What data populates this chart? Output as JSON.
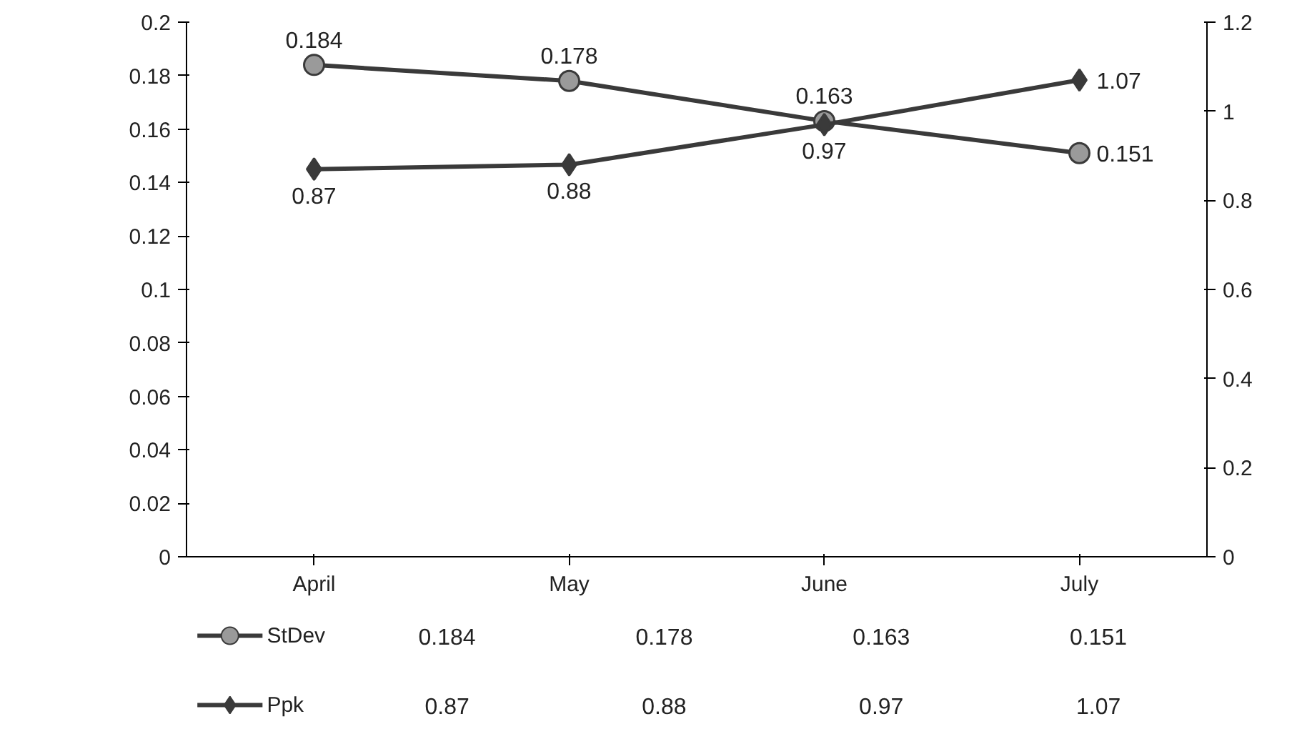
{
  "chart_data": {
    "type": "line",
    "categories": [
      "April",
      "May",
      "June",
      "July"
    ],
    "series": [
      {
        "name": "StDev",
        "color": "#3a3a3a",
        "marker": "circle",
        "values": [
          0.184,
          0.178,
          0.163,
          0.151
        ],
        "value_labels": [
          "0.184",
          "0.178",
          "0.163",
          "0.151"
        ]
      },
      {
        "name": "Ppk",
        "color": "#3a3a3a",
        "marker": "diamond",
        "axis": "y2",
        "values": [
          0.87,
          0.88,
          0.97,
          1.07
        ],
        "value_labels": [
          "0.87",
          "0.88",
          "0.97",
          "1.07"
        ]
      }
    ],
    "ylim": [
      0,
      0.2
    ],
    "yticks": [
      0,
      0.02,
      0.04,
      0.06,
      0.08,
      0.1,
      0.12,
      0.14,
      0.16,
      0.18,
      0.2
    ],
    "y2lim": [
      0,
      1.2
    ],
    "y2ticks": [
      0,
      0.2,
      0.4,
      0.6,
      0.8,
      1,
      1.2
    ],
    "legend": "bottom"
  }
}
